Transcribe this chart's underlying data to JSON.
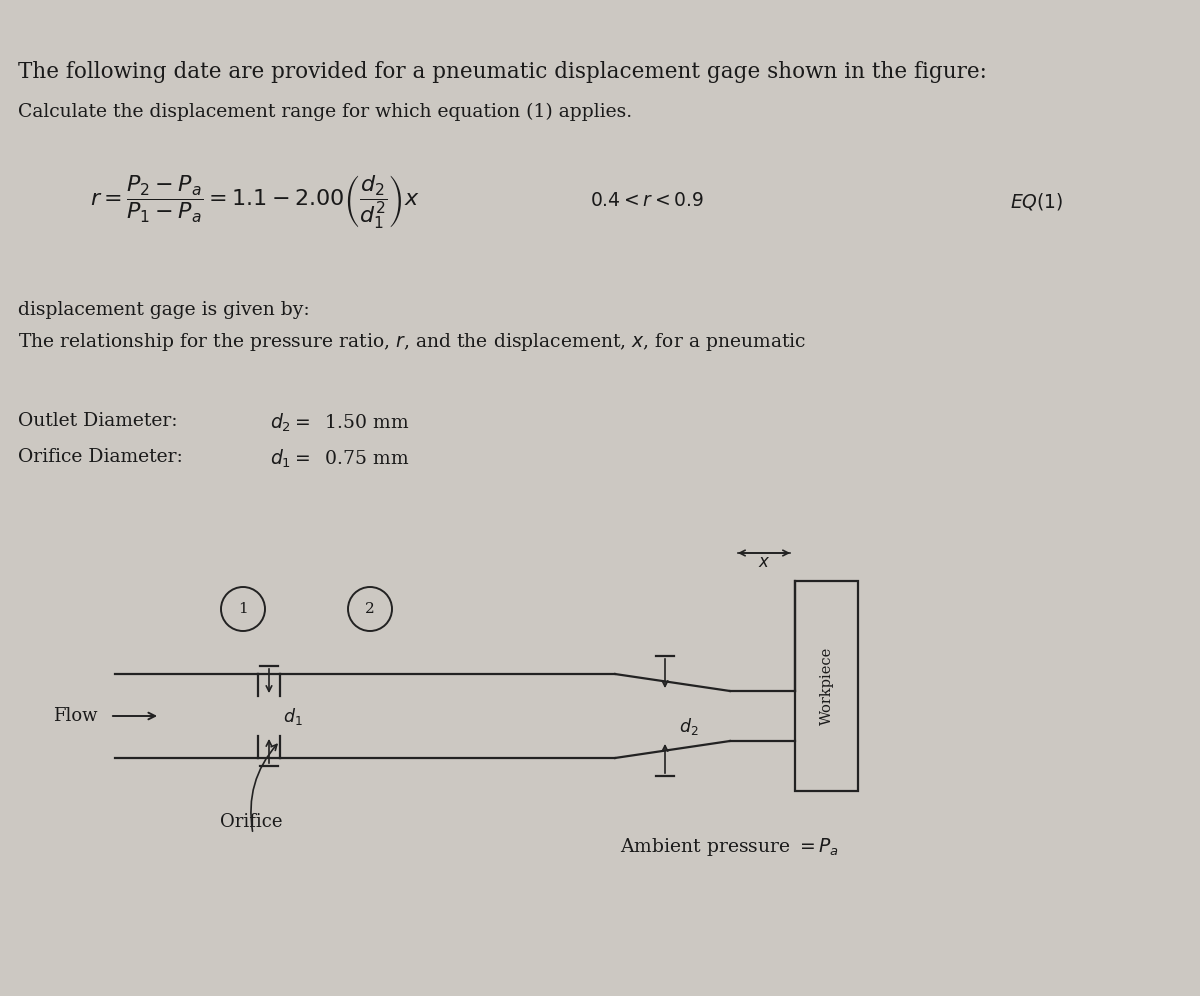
{
  "bg_color": "#ccc8c2",
  "title_text": "The following date are provided for a pneumatic displacement gage shown in the figure:",
  "title_fontsize": 15.5,
  "body_fontsize": 13.5,
  "eq_fontsize": 13,
  "text_color": "#1a1a1a",
  "line_color": "#222222",
  "orifice_label": "Orifice",
  "flow_label": "Flow",
  "workpiece_label": "Workpiece",
  "node1_label": "1",
  "node2_label": "2",
  "d1_label": "$d_1$",
  "d2_label": "$d_2$",
  "x_label": "$x$",
  "ambient_label": "Ambient pressure $= P_a$",
  "orifice_diameter_line1": "Orifice Diameter:",
  "orifice_diameter_line2": "$d_1 =\\;$ 0.75 mm",
  "outlet_diameter_line1": "Outlet Diameter:",
  "outlet_diameter_line2": "$d_2 =\\;$ 1.50 mm",
  "relationship_line1": "The relationship for the pressure ratio, $r$, and the displacement, $x$, for a pneumatic",
  "relationship_line2": "displacement gage is given by:",
  "equation": "$r = \\dfrac{P_2 - P_a}{P_1 - P_a} = 1.1 - 2.00\\left(\\dfrac{d_2}{d_1^2}\\right)x$",
  "constraint": "$0.4 < r < 0.9$",
  "eq_label": "$EQ(1)$",
  "calculate_text": "Calculate the displacement range for which equation (1) applies."
}
